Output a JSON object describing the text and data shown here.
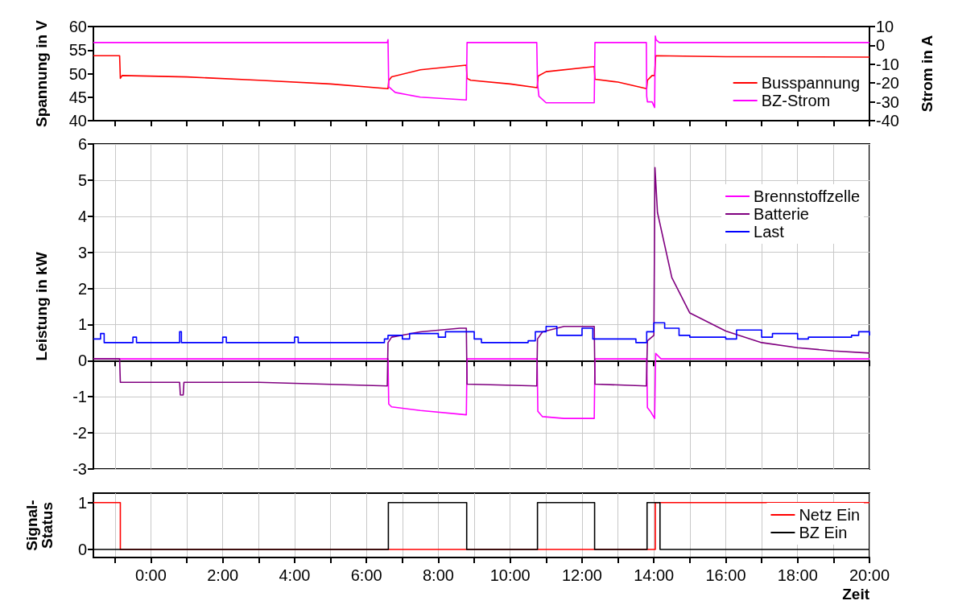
{
  "chart_data": [
    {
      "type": "line",
      "ylabel": "Spannung in V",
      "y2label": "Strom in A",
      "xlim": [
        -1.6,
        20
      ],
      "ylim": [
        40,
        60
      ],
      "yticks": [
        40,
        45,
        50,
        55,
        60
      ],
      "y2lim": [
        -40,
        10
      ],
      "y2ticks": [
        -40,
        -30,
        -20,
        -10,
        0,
        10
      ],
      "xticks": [
        {
          "value": -1,
          "label": null
        },
        {
          "value": 0,
          "label": null
        },
        {
          "value": 1,
          "label": null
        },
        {
          "value": 2,
          "label": null
        },
        {
          "value": 3,
          "label": null
        },
        {
          "value": 4,
          "label": null
        },
        {
          "value": 5,
          "label": null
        },
        {
          "value": 6,
          "label": null
        },
        {
          "value": 7,
          "label": null
        },
        {
          "value": 8,
          "label": null
        },
        {
          "value": 9,
          "label": null
        },
        {
          "value": 10,
          "label": null
        },
        {
          "value": 11,
          "label": null
        },
        {
          "value": 12,
          "label": null
        },
        {
          "value": 13,
          "label": null
        },
        {
          "value": 14,
          "label": null
        },
        {
          "value": 15,
          "label": null
        },
        {
          "value": 16,
          "label": null
        },
        {
          "value": 17,
          "label": null
        },
        {
          "value": 18,
          "label": null
        },
        {
          "value": 19,
          "label": null
        },
        {
          "value": 20,
          "label": null
        }
      ],
      "tick_labels": "y",
      "grid": false,
      "legend": "bottom right",
      "series": [
        {
          "name": "Busspannung",
          "color": "#ff0000",
          "x": [
            -1.6,
            -0.87,
            -0.85,
            -0.8,
            1,
            3,
            5,
            6.6,
            6.62,
            6.7,
            7.5,
            8.78,
            8.8,
            8.9,
            10,
            10.75,
            10.78,
            11,
            12.34,
            12.36,
            13,
            13.8,
            13.82,
            13.95,
            14.02,
            14.05,
            16,
            20
          ],
          "values": [
            53.8,
            53.8,
            49,
            49.6,
            49.3,
            48.6,
            47.8,
            46.8,
            48.5,
            49.3,
            50.8,
            51.8,
            49,
            48.6,
            47.8,
            47,
            49.5,
            50.4,
            51.5,
            48.8,
            48.2,
            46.8,
            48.6,
            49.6,
            49.6,
            53.8,
            53.6,
            53.5
          ]
        },
        {
          "name": "BZ-Strom",
          "color": "#ff00ff",
          "axis": "y2",
          "x": [
            -1.6,
            6.58,
            6.6,
            6.62,
            6.8,
            7.5,
            8.78,
            8.79,
            8.8,
            10.74,
            10.76,
            10.8,
            11,
            12.34,
            12.35,
            12.36,
            13.79,
            13.8,
            13.82,
            13.95,
            14.02,
            14.04,
            14.06,
            14.15,
            20
          ],
          "values": [
            1.5,
            1.5,
            3,
            -22,
            -25,
            -27.5,
            -29,
            -29,
            1.5,
            1.5,
            -20,
            -27,
            -30.5,
            -30.5,
            -30.5,
            1.5,
            1.5,
            -27,
            -30,
            -30,
            -33,
            5,
            3,
            1.5,
            1.5
          ]
        }
      ]
    },
    {
      "type": "line",
      "ylabel": "Leistung in kW",
      "xlim": [
        -1.6,
        20
      ],
      "ylim": [
        -3,
        6
      ],
      "yticks": [
        -3,
        -2,
        -1,
        0,
        1,
        2,
        3,
        4,
        5,
        6
      ],
      "xticks": [
        {
          "value": -1,
          "label": null
        },
        {
          "value": 0,
          "label": null
        },
        {
          "value": 1,
          "label": null
        },
        {
          "value": 2,
          "label": null
        },
        {
          "value": 3,
          "label": null
        },
        {
          "value": 4,
          "label": null
        },
        {
          "value": 5,
          "label": null
        },
        {
          "value": 6,
          "label": null
        },
        {
          "value": 7,
          "label": null
        },
        {
          "value": 8,
          "label": null
        },
        {
          "value": 9,
          "label": null
        },
        {
          "value": 10,
          "label": null
        },
        {
          "value": 11,
          "label": null
        },
        {
          "value": 12,
          "label": null
        },
        {
          "value": 13,
          "label": null
        },
        {
          "value": 14,
          "label": null
        },
        {
          "value": 15,
          "label": null
        },
        {
          "value": 16,
          "label": null
        },
        {
          "value": 17,
          "label": null
        },
        {
          "value": 18,
          "label": null
        },
        {
          "value": 19,
          "label": null
        },
        {
          "value": 20,
          "label": null
        }
      ],
      "tick_labels": "y",
      "grid": true,
      "legend": "top right",
      "series": [
        {
          "name": "Brennstoffzelle",
          "color": "#ff00ff",
          "x": [
            -1.6,
            6.6,
            6.62,
            6.7,
            7.5,
            8.78,
            8.8,
            10.75,
            10.77,
            10.9,
            11.5,
            12.34,
            12.36,
            13.8,
            13.82,
            13.9,
            14.02,
            14.05,
            14.1,
            14.2,
            20
          ],
          "values": [
            0.05,
            0.05,
            -1.2,
            -1.28,
            -1.38,
            -1.5,
            0.05,
            0.05,
            -1.4,
            -1.55,
            -1.6,
            -1.6,
            0.05,
            0.05,
            -1.3,
            -1.4,
            -1.6,
            0.2,
            0.15,
            0.05,
            0.05
          ]
        },
        {
          "name": "Batterie",
          "color": "#800080",
          "x": [
            -1.6,
            -0.87,
            -0.85,
            0.8,
            0.82,
            0.9,
            0.92,
            3,
            6.58,
            6.6,
            6.7,
            7.5,
            8.6,
            8.78,
            8.8,
            10.74,
            10.76,
            10.9,
            11.5,
            12.34,
            12.36,
            13.79,
            13.82,
            14.0,
            14.03,
            14.1,
            14.5,
            15,
            16,
            17,
            18,
            19,
            20
          ],
          "values": [
            0.05,
            0.05,
            -0.6,
            -0.6,
            -0.95,
            -0.95,
            -0.6,
            -0.6,
            -0.7,
            0.5,
            0.65,
            0.8,
            0.9,
            0.9,
            -0.65,
            -0.7,
            0.6,
            0.8,
            0.95,
            0.95,
            -0.65,
            -0.7,
            0.55,
            0.7,
            5.35,
            4.1,
            2.3,
            1.32,
            0.82,
            0.5,
            0.36,
            0.27,
            0.21
          ]
        },
        {
          "name": "Last",
          "type": "step",
          "color": "#0000ff",
          "x": [
            -1.6,
            -1.4,
            -1.3,
            -0.5,
            -0.4,
            0.8,
            0.85,
            2,
            2.1,
            4,
            4.1,
            6.5,
            6.6,
            7,
            7.2,
            8,
            8.2,
            9,
            9.2,
            10.5,
            10.7,
            11,
            11.3,
            12,
            12.3,
            13.5,
            13.8,
            14,
            14.3,
            14.7,
            15,
            16,
            16.3,
            17,
            17.3,
            18,
            18.3,
            19.5,
            19.7,
            20
          ],
          "values": [
            0.6,
            0.75,
            0.5,
            0.65,
            0.5,
            0.8,
            0.5,
            0.65,
            0.5,
            0.65,
            0.5,
            0.6,
            0.7,
            0.6,
            0.75,
            0.65,
            0.8,
            0.6,
            0.5,
            0.55,
            0.8,
            0.95,
            0.7,
            0.9,
            0.6,
            0.5,
            0.8,
            1.05,
            0.9,
            0.7,
            0.65,
            0.6,
            0.85,
            0.65,
            0.75,
            0.6,
            0.65,
            0.7,
            0.8,
            0.7
          ]
        }
      ]
    },
    {
      "type": "step",
      "ylabel": "Signal-Status",
      "xlabel": "Zeit",
      "xlim": [
        -1.6,
        20
      ],
      "ylim": [
        -0.17,
        1.2
      ],
      "yticks": [
        0,
        1
      ],
      "xticks": [
        {
          "value": -1,
          "label": null
        },
        {
          "value": 0,
          "label": "0:00"
        },
        {
          "value": 1,
          "label": null
        },
        {
          "value": 2,
          "label": "2:00"
        },
        {
          "value": 3,
          "label": null
        },
        {
          "value": 4,
          "label": "4:00"
        },
        {
          "value": 5,
          "label": null
        },
        {
          "value": 6,
          "label": "6:00"
        },
        {
          "value": 7,
          "label": null
        },
        {
          "value": 8,
          "label": "8:00"
        },
        {
          "value": 9,
          "label": null
        },
        {
          "value": 10,
          "label": "10:00"
        },
        {
          "value": 11,
          "label": null
        },
        {
          "value": 12,
          "label": "12:00"
        },
        {
          "value": 13,
          "label": null
        },
        {
          "value": 14,
          "label": "14:00"
        },
        {
          "value": 15,
          "label": null
        },
        {
          "value": 16,
          "label": "16:00"
        },
        {
          "value": 17,
          "label": null
        },
        {
          "value": 18,
          "label": "18:00"
        },
        {
          "value": 19,
          "label": null
        },
        {
          "value": 20,
          "label": "20:00"
        }
      ],
      "grid": "x",
      "legend": "right",
      "series": [
        {
          "name": "Netz Ein",
          "color": "#ff0000",
          "x": [
            -1.6,
            -0.85,
            14.04,
            20
          ],
          "values": [
            1,
            0,
            1,
            1
          ]
        },
        {
          "name": "BZ Ein",
          "color": "#000000",
          "x": [
            -1.6,
            6.61,
            8.79,
            10.76,
            12.35,
            13.81,
            14.17,
            20
          ],
          "values": [
            0,
            1,
            0,
            1,
            0,
            1,
            0,
            0
          ]
        }
      ]
    }
  ]
}
